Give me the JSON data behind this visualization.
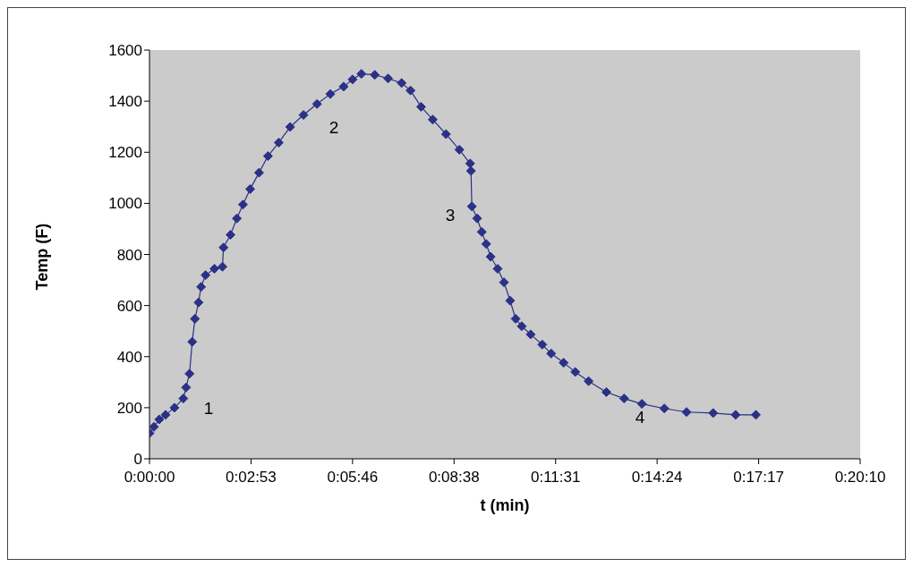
{
  "chart_data": {
    "type": "line",
    "xlabel": "t (min)",
    "ylabel": "Temp (F)",
    "x": [
      0,
      0.0021,
      0.0046,
      0.0076,
      0.0118,
      0.016,
      0.0173,
      0.0189,
      0.0202,
      0.0215,
      0.0232,
      0.0244,
      0.0265,
      0.0307,
      0.0345,
      0.035,
      0.0383,
      0.0413,
      0.0442,
      0.0476,
      0.0518,
      0.056,
      0.0611,
      0.0665,
      0.0728,
      0.0792,
      0.0855,
      0.0918,
      0.096,
      0.1002,
      0.1065,
      0.1128,
      0.1192,
      0.1234,
      0.1284,
      0.1339,
      0.1402,
      0.1465,
      0.1516,
      0.152,
      0.1524,
      0.1549,
      0.1571,
      0.1592,
      0.1613,
      0.1646,
      0.1676,
      0.1705,
      0.1731,
      0.176,
      0.1802,
      0.1857,
      0.1899,
      0.1958,
      0.2013,
      0.2076,
      0.216,
      0.2244,
      0.2328,
      0.2434,
      0.2539,
      0.2665,
      0.2771,
      0.2867
    ],
    "series": [
      {
        "color": "#2a3186",
        "values": [
          100,
          125,
          154,
          172,
          200,
          236,
          279,
          333,
          458,
          548,
          612,
          673,
          719,
          744,
          752,
          827,
          877,
          941,
          995,
          1056,
          1120,
          1185,
          1238,
          1299,
          1346,
          1389,
          1428,
          1457,
          1485,
          1507,
          1503,
          1489,
          1471,
          1442,
          1378,
          1328,
          1271,
          1210,
          1156,
          1127,
          988,
          941,
          888,
          841,
          791,
          744,
          691,
          619,
          548,
          519,
          487,
          447,
          412,
          376,
          340,
          304,
          261,
          236,
          215,
          197,
          183,
          179,
          172,
          172
        ]
      }
    ],
    "xlim": [
      0,
      0.336
    ],
    "xticks": [
      {
        "value": 0,
        "label": "0:00:00"
      },
      {
        "value": 0.048,
        "label": "0:02:53"
      },
      {
        "value": 0.096,
        "label": "0:05:46"
      },
      {
        "value": 0.144,
        "label": "0:08:38"
      },
      {
        "value": 0.192,
        "label": "0:11:31"
      },
      {
        "value": 0.24,
        "label": "0:14:24"
      },
      {
        "value": 0.288,
        "label": "0:17:17"
      },
      {
        "value": 0.336,
        "label": "0:20:10"
      }
    ],
    "ylim": [
      0,
      1600
    ],
    "yticks": [
      0,
      200,
      400,
      600,
      800,
      1000,
      1200,
      1400,
      1600
    ],
    "marker": "diamond",
    "line_style": "solid",
    "legend": false,
    "annotations": [
      "1",
      "2",
      "3",
      "4"
    ]
  }
}
